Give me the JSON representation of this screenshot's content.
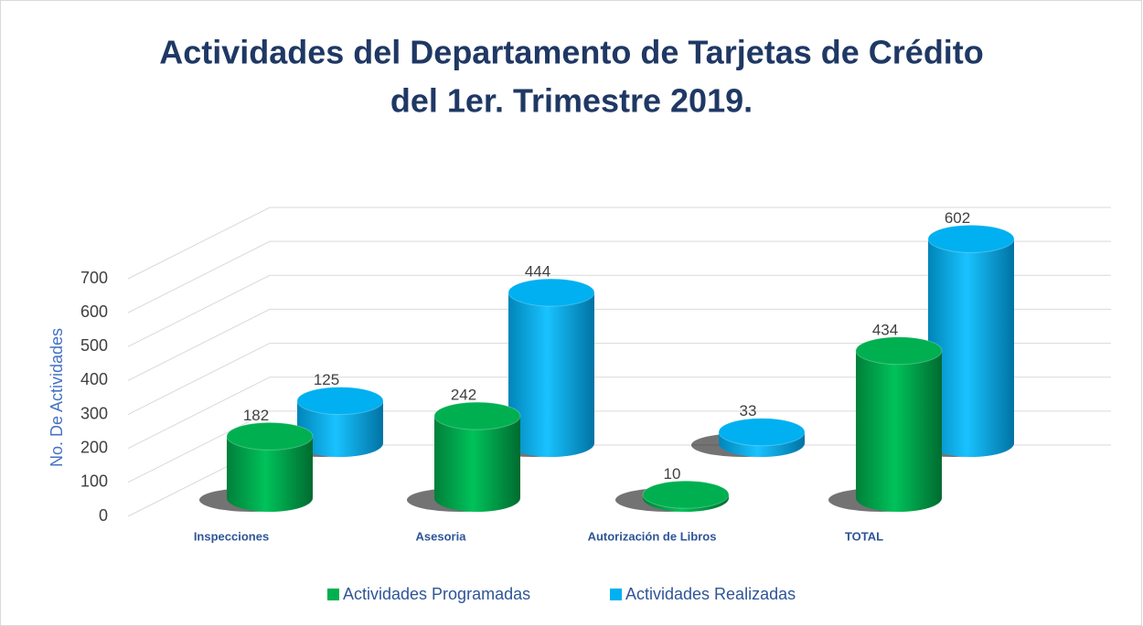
{
  "chart_data": {
    "type": "bar3d",
    "title": [
      "Actividades del Departamento de Tarjetas de Crédito",
      "del 1er. Trimestre 2019."
    ],
    "y_label": "No. De Actividades",
    "categories": [
      "Inspecciones",
      "Asesoria",
      "Autorización de Libros",
      "TOTAL"
    ],
    "series": [
      {
        "name": "Actividades Programadas",
        "color": "#00b050",
        "values": [
          182,
          242,
          10,
          434
        ]
      },
      {
        "name": "Actividades Realizadas",
        "color": "#00b0f0",
        "values": [
          125,
          444,
          33,
          602
        ]
      }
    ],
    "ylim": [
      0,
      700
    ],
    "yticks": [
      0,
      100,
      200,
      300,
      400,
      500,
      600,
      700
    ],
    "grid": true,
    "legend": "bottom"
  }
}
